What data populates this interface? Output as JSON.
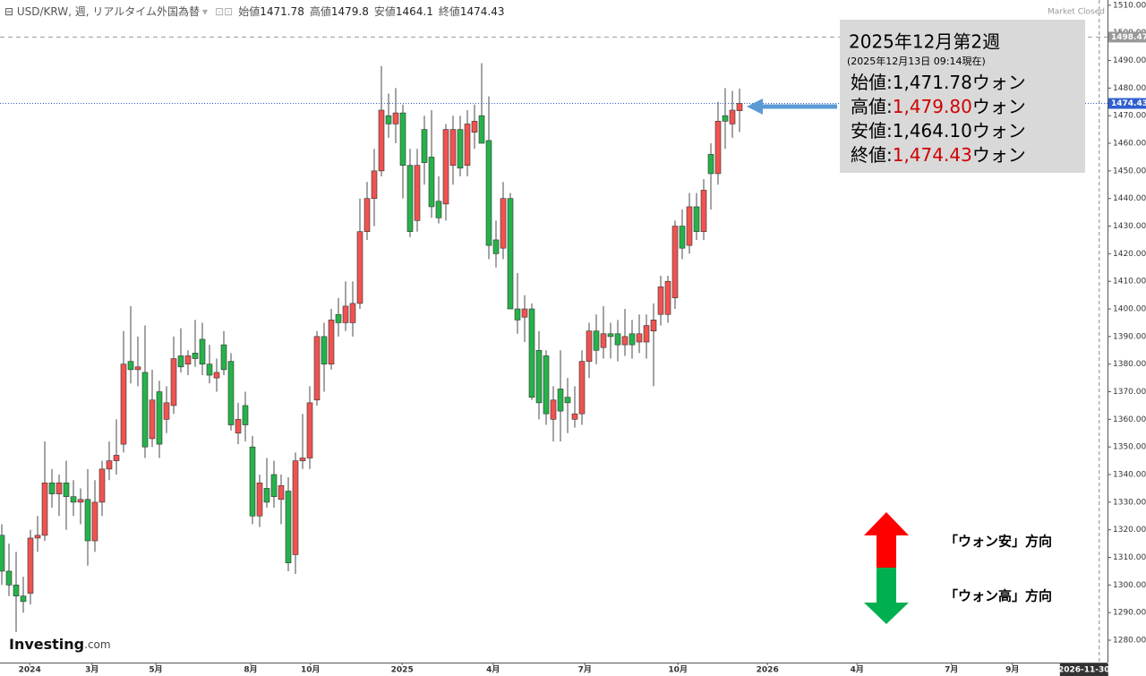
{
  "chart_data": {
    "type": "candlestick",
    "header": {
      "symbol": "USD/KRW, 週, リアルタイム外国為替",
      "fields": [
        {
          "name": "始値",
          "value": 1471.78
        },
        {
          "name": "高値",
          "value": 1479.8
        },
        {
          "name": "安値",
          "value": 1464.1
        },
        {
          "name": "終値",
          "value": 1474.43
        }
      ],
      "status": "Market Closed"
    },
    "brand": {
      "name": "Investing",
      "suffix": ".com"
    },
    "info_box": {
      "title": "2025年12月第2週",
      "subtitle": "(2025年12月13日 09:14現在)",
      "rows": [
        {
          "name": "始値:",
          "value": {
            "value": 1471.78,
            "label": "1,471.78"
          },
          "unit": "ウォン",
          "color": "#000000"
        },
        {
          "name": "高値:",
          "value": {
            "value": 1479.8,
            "label": "1,479.80"
          },
          "unit": "ウォン",
          "color": "#d00000"
        },
        {
          "name": "安値:",
          "value": {
            "value": 1464.1,
            "label": "1,464.10"
          },
          "unit": "ウォン",
          "color": "#000000"
        },
        {
          "name": "終値:",
          "value": {
            "value": 1474.43,
            "label": "1,474.43"
          },
          "unit": "ウォン",
          "color": "#d00000"
        }
      ]
    },
    "annotations": [
      "「ウォン安」方向",
      "「ウォン高」方向"
    ],
    "up_color": "#ef5350",
    "down_color": "#26b24a",
    "open": [
      1318,
      1305,
      1300,
      1296,
      1297,
      1317,
      1318,
      1337,
      1333,
      1337,
      1332,
      1330,
      1331,
      1316,
      1330,
      1342,
      1345,
      1351,
      1381,
      1378,
      1377,
      1353,
      1370,
      1360,
      1365,
      1383,
      1380,
      1384,
      1389,
      1380,
      1375,
      1387,
      1381,
      1355,
      1365,
      1350,
      1325,
      1335,
      1340,
      1331,
      1334,
      1311,
      1345,
      1346,
      1367,
      1390,
      1380,
      1398,
      1395,
      1395,
      1402,
      1428,
      1440,
      1450,
      1470,
      1467,
      1471,
      1452,
      1432,
      1465,
      1455,
      1439,
      1438,
      1452,
      1465,
      1452,
      1464,
      1470,
      1461,
      1425,
      1422,
      1440,
      1400,
      1397,
      1400,
      1385,
      1383,
      1360,
      1371,
      1368,
      1360,
      1362,
      1381,
      1392,
      1386,
      1391,
      1391,
      1387,
      1391,
      1388,
      1388,
      1392,
      1398,
      1398,
      1404,
      1430,
      1423,
      1437,
      1428,
      1456,
      1449,
      1470,
      1467,
      1471.78
    ],
    "high": [
      1322,
      1315,
      1312,
      1303,
      1320,
      1325,
      1352,
      1342,
      1340,
      1345,
      1338,
      1335,
      1342,
      1338,
      1345,
      1352,
      1360,
      1392,
      1401,
      1390,
      1394,
      1378,
      1374,
      1372,
      1390,
      1393,
      1385,
      1396,
      1395,
      1387,
      1382,
      1392,
      1384,
      1366,
      1370,
      1354,
      1340,
      1346,
      1345,
      1340,
      1339,
      1348,
      1362,
      1372,
      1392,
      1395,
      1400,
      1404,
      1410,
      1410,
      1440,
      1446,
      1458,
      1488,
      1478,
      1480,
      1474,
      1458,
      1458,
      1470,
      1472,
      1448,
      1467,
      1470,
      1470,
      1472,
      1474,
      1489,
      1477,
      1432,
      1446,
      1442,
      1413,
      1405,
      1402,
      1392,
      1385,
      1372,
      1385,
      1375,
      1372,
      1385,
      1395,
      1398,
      1401,
      1395,
      1396,
      1400,
      1396,
      1398,
      1398,
      1402,
      1412,
      1412,
      1432,
      1436,
      1442,
      1442,
      1447,
      1460,
      1475,
      1480,
      1479,
      1479.8
    ],
    "low": [
      1300,
      1296,
      1283,
      1290,
      1293,
      1312,
      1316,
      1328,
      1325,
      1320,
      1325,
      1322,
      1307,
      1312,
      1325,
      1338,
      1340,
      1348,
      1373,
      1372,
      1346,
      1350,
      1346,
      1355,
      1362,
      1377,
      1376,
      1379,
      1376,
      1373,
      1370,
      1376,
      1356,
      1351,
      1352,
      1322,
      1321,
      1328,
      1328,
      1322,
      1305,
      1304,
      1342,
      1342,
      1365,
      1370,
      1378,
      1390,
      1392,
      1390,
      1400,
      1425,
      1430,
      1448,
      1462,
      1460,
      1440,
      1426,
      1428,
      1445,
      1433,
      1431,
      1432,
      1445,
      1448,
      1448,
      1458,
      1460,
      1418,
      1415,
      1418,
      1400,
      1391,
      1388,
      1367,
      1360,
      1358,
      1352,
      1352,
      1355,
      1357,
      1358,
      1375,
      1380,
      1382,
      1382,
      1381,
      1383,
      1382,
      1384,
      1382,
      1372,
      1394,
      1395,
      1400,
      1418,
      1420,
      1425,
      1425,
      1436,
      1445,
      1458,
      1462,
      1464.1
    ],
    "close": [
      1305,
      1300,
      1296,
      1294,
      1317,
      1318,
      1337,
      1333,
      1337,
      1332,
      1330,
      1331,
      1316,
      1330,
      1342,
      1345,
      1347,
      1380,
      1378,
      1379,
      1350,
      1367,
      1351,
      1366,
      1382,
      1379,
      1383,
      1382,
      1380,
      1376,
      1377,
      1378,
      1358,
      1360,
      1358,
      1325,
      1337,
      1330,
      1332,
      1336,
      1308,
      1345,
      1346,
      1366,
      1390,
      1380,
      1396,
      1395,
      1401,
      1402,
      1428,
      1440,
      1450,
      1472,
      1467,
      1471,
      1452,
      1428,
      1452,
      1453,
      1437,
      1433,
      1465,
      1465,
      1451,
      1467,
      1468,
      1460,
      1423,
      1420,
      1440,
      1400,
      1396,
      1400,
      1368,
      1366,
      1362,
      1367,
      1363,
      1366,
      1362,
      1381,
      1392,
      1385,
      1391,
      1390,
      1387,
      1390,
      1387,
      1391,
      1394,
      1396,
      1408,
      1410,
      1430,
      1422,
      1437,
      1428,
      1443,
      1449,
      1468,
      1468,
      1472,
      1474.43
    ],
    "xlim": [
      -0.25,
      154.375
    ],
    "xticks": [
      {
        "value": 3.9,
        "label": "2024"
      },
      {
        "value": 12.6,
        "label": "3月"
      },
      {
        "value": 21.5,
        "label": "5月"
      },
      {
        "value": 34.75,
        "label": "8月"
      },
      {
        "value": 43.1,
        "label": "10月"
      },
      {
        "value": 55.9,
        "label": "2025"
      },
      {
        "value": 68.6,
        "label": "4月"
      },
      {
        "value": 81.4,
        "label": "7月"
      },
      {
        "value": 94.4,
        "label": "10月"
      },
      {
        "value": 106.9,
        "label": "2026"
      },
      {
        "value": 119.4,
        "label": "4月"
      },
      {
        "value": 132.6,
        "label": "7月"
      },
      {
        "value": 141.1,
        "label": "9月"
      }
    ],
    "cursor": {
      "value": 151.1,
      "label": "2026-11-30"
    },
    "ylim": [
      1271.9,
      1511.9
    ],
    "yticks": [
      {
        "value": 1280,
        "label": "1280.00"
      },
      {
        "value": 1290,
        "label": "1290.00"
      },
      {
        "value": 1300,
        "label": "1300.00"
      },
      {
        "value": 1310,
        "label": "1310.00"
      },
      {
        "value": 1320,
        "label": "1320.00"
      },
      {
        "value": 1330,
        "label": "1330.00"
      },
      {
        "value": 1340,
        "label": "1340.00"
      },
      {
        "value": 1350,
        "label": "1350.00"
      },
      {
        "value": 1360,
        "label": "1360.00"
      },
      {
        "value": 1370,
        "label": "1370.00"
      },
      {
        "value": 1380,
        "label": "1380.00"
      },
      {
        "value": 1390,
        "label": "1390.00"
      },
      {
        "value": 1400,
        "label": "1400.00"
      },
      {
        "value": 1410,
        "label": "1410.00"
      },
      {
        "value": 1420,
        "label": "1420.00"
      },
      {
        "value": 1430,
        "label": "1430.00"
      },
      {
        "value": 1440,
        "label": "1440.00"
      },
      {
        "value": 1450,
        "label": "1450.00"
      },
      {
        "value": 1460,
        "label": "1460.00"
      },
      {
        "value": 1470,
        "label": "1470.00"
      },
      {
        "value": 1480,
        "label": "1480.00"
      },
      {
        "value": 1490,
        "label": "1490.00"
      },
      {
        "value": 1500,
        "label": "1500.00"
      },
      {
        "value": 1510,
        "label": "1510.00"
      }
    ],
    "price_lines": [
      {
        "value": 1498.47,
        "color": "#999999"
      },
      {
        "value": 1474.43,
        "color": "#2f5fd0"
      }
    ]
  }
}
